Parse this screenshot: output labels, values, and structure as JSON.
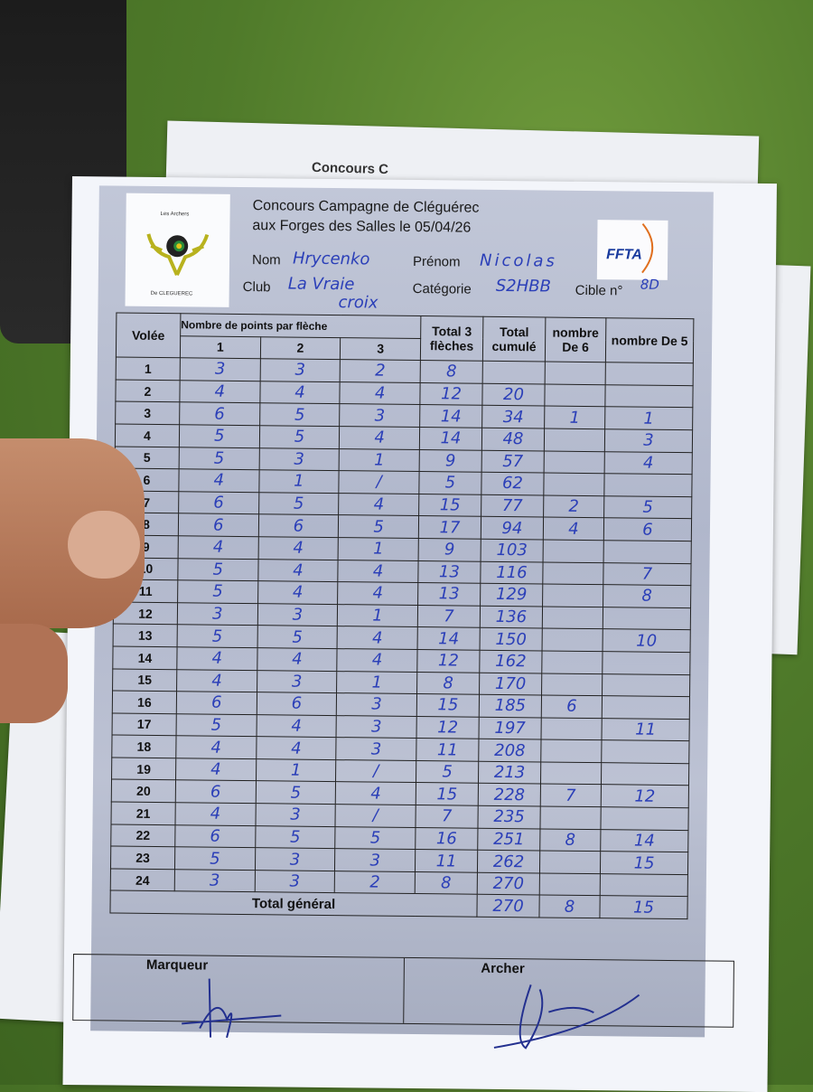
{
  "back_sheet": {
    "title": "Concours C"
  },
  "header": {
    "logo_text_top": "Les Archers",
    "logo_text_bottom": "De CLEGUEREC",
    "title_line1": "Concours Campagne  de Cléguérec",
    "title_line2": "aux Forges des Salles le 05/04/26",
    "ffta_logo": "FFTA",
    "nom_label": "Nom",
    "nom_value": "Hrycenko",
    "prenom_label": "Prénom",
    "prenom_value": "Nicolas",
    "club_label": "Club",
    "club_value_line1": "La Vraie",
    "club_value_line2": "croix",
    "categorie_label": "Catégorie",
    "categorie_value": "S2HBB",
    "cible_label": "Cible n°",
    "cible_value": "8D"
  },
  "table": {
    "headers": {
      "volee": "Volée",
      "points_group": "Nombre de points par flèche",
      "arrow1": "1",
      "arrow2": "2",
      "arrow3": "3",
      "total3": "Total 3 flèches",
      "cumul": "Total cumulé",
      "de6": "nombre De 6",
      "de5": "nombre De 5"
    },
    "rows": [
      {
        "volee": "1",
        "a1": "3",
        "a2": "3",
        "a3": "2",
        "total": "8",
        "cumul": "",
        "de6": "",
        "de5": ""
      },
      {
        "volee": "2",
        "a1": "4",
        "a2": "4",
        "a3": "4",
        "total": "12",
        "cumul": "20",
        "de6": "",
        "de5": ""
      },
      {
        "volee": "3",
        "a1": "6",
        "a2": "5",
        "a3": "3",
        "total": "14",
        "cumul": "34",
        "de6": "1",
        "de5": "1"
      },
      {
        "volee": "4",
        "a1": "5",
        "a2": "5",
        "a3": "4",
        "total": "14",
        "cumul": "48",
        "de6": "",
        "de5": "3"
      },
      {
        "volee": "5",
        "a1": "5",
        "a2": "3",
        "a3": "1",
        "total": "9",
        "cumul": "57",
        "de6": "",
        "de5": "4"
      },
      {
        "volee": "6",
        "a1": "4",
        "a2": "1",
        "a3": "/",
        "total": "5",
        "cumul": "62",
        "de6": "",
        "de5": ""
      },
      {
        "volee": "7",
        "a1": "6",
        "a2": "5",
        "a3": "4",
        "total": "15",
        "cumul": "77",
        "de6": "2",
        "de5": "5"
      },
      {
        "volee": "8",
        "a1": "6",
        "a2": "6",
        "a3": "5",
        "total": "17",
        "cumul": "94",
        "de6": "4",
        "de5": "6"
      },
      {
        "volee": "9",
        "a1": "4",
        "a2": "4",
        "a3": "1",
        "total": "9",
        "cumul": "103",
        "de6": "",
        "de5": ""
      },
      {
        "volee": "10",
        "a1": "5",
        "a2": "4",
        "a3": "4",
        "total": "13",
        "cumul": "116",
        "de6": "",
        "de5": "7"
      },
      {
        "volee": "11",
        "a1": "5",
        "a2": "4",
        "a3": "4",
        "total": "13",
        "cumul": "129",
        "de6": "",
        "de5": "8"
      },
      {
        "volee": "12",
        "a1": "3",
        "a2": "3",
        "a3": "1",
        "total": "7",
        "cumul": "136",
        "de6": "",
        "de5": ""
      },
      {
        "volee": "13",
        "a1": "5",
        "a2": "5",
        "a3": "4",
        "total": "14",
        "cumul": "150",
        "de6": "",
        "de5": "10"
      },
      {
        "volee": "14",
        "a1": "4",
        "a2": "4",
        "a3": "4",
        "total": "12",
        "cumul": "162",
        "de6": "",
        "de5": ""
      },
      {
        "volee": "15",
        "a1": "4",
        "a2": "3",
        "a3": "1",
        "total": "8",
        "cumul": "170",
        "de6": "",
        "de5": ""
      },
      {
        "volee": "16",
        "a1": "6",
        "a2": "6",
        "a3": "3",
        "total": "15",
        "cumul": "185",
        "de6": "6",
        "de5": ""
      },
      {
        "volee": "17",
        "a1": "5",
        "a2": "4",
        "a3": "3",
        "total": "12",
        "cumul": "197",
        "de6": "",
        "de5": "11"
      },
      {
        "volee": "18",
        "a1": "4",
        "a2": "4",
        "a3": "3",
        "total": "11",
        "cumul": "208",
        "de6": "",
        "de5": ""
      },
      {
        "volee": "19",
        "a1": "4",
        "a2": "1",
        "a3": "/",
        "total": "5",
        "cumul": "213",
        "de6": "",
        "de5": ""
      },
      {
        "volee": "20",
        "a1": "6",
        "a2": "5",
        "a3": "4",
        "total": "15",
        "cumul": "228",
        "de6": "7",
        "de5": "12"
      },
      {
        "volee": "21",
        "a1": "4",
        "a2": "3",
        "a3": "/",
        "total": "7",
        "cumul": "235",
        "de6": "",
        "de5": ""
      },
      {
        "volee": "22",
        "a1": "6",
        "a2": "5",
        "a3": "5",
        "total": "16",
        "cumul": "251",
        "de6": "8",
        "de5": "14"
      },
      {
        "volee": "23",
        "a1": "5",
        "a2": "3",
        "a3": "3",
        "total": "11",
        "cumul": "262",
        "de6": "",
        "de5": "15"
      },
      {
        "volee": "24",
        "a1": "3",
        "a2": "3",
        "a3": "2",
        "total": "8",
        "cumul": "270",
        "de6": "",
        "de5": ""
      }
    ],
    "total_general_label": "Total général",
    "total_general": {
      "cumul": "270",
      "de6": "8",
      "de5": "15"
    }
  },
  "signatures": {
    "marqueur_label": "Marqueur",
    "archer_label": "Archer"
  },
  "colors": {
    "ink": "#2b3fb8",
    "grass": "#4f7a2a",
    "paper": "#f3f5fa"
  }
}
